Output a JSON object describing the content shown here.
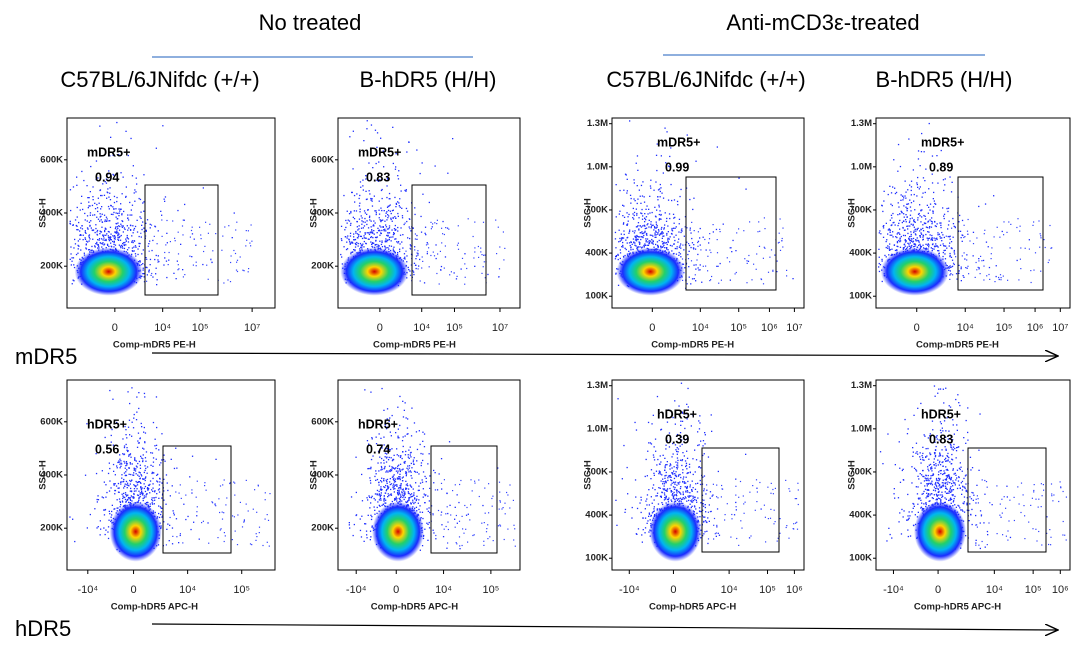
{
  "groups": [
    {
      "title": "No treated"
    },
    {
      "title": "Anti-mCD3ε-treated"
    }
  ],
  "columns": [
    "C57BL/6JNifdc (+/+)",
    "B-hDR5 (H/H)",
    "C57BL/6JNifdc (+/+)",
    "B-hDR5 (H/H)"
  ],
  "rows": [
    {
      "marker": "mDR5",
      "plots": [
        {
          "gate": "mDR5+",
          "value": "0.94",
          "x_label": "Comp-mDR5 PE-H",
          "y_label": "SSC-H",
          "yticks": [
            "600K",
            "400K",
            "200K"
          ],
          "xticks": [
            "0",
            "10⁴",
            "10⁵",
            "10⁷"
          ]
        },
        {
          "gate": "mDR5+",
          "value": "0.83",
          "x_label": "Comp-mDR5 PE-H",
          "y_label": "SSC-H",
          "yticks": [
            "600K",
            "400K",
            "200K"
          ],
          "xticks": [
            "0",
            "10⁴",
            "10⁵",
            "10⁷"
          ]
        },
        {
          "gate": "mDR5+",
          "value": "0.99",
          "x_label": "Comp-mDR5 PE-H",
          "y_label": "SSC-H",
          "yticks": [
            "1.3M",
            "1.0M",
            "700K",
            "400K",
            "100K"
          ],
          "xticks": [
            "0",
            "10⁴",
            "10⁵",
            "10⁶",
            "10⁷"
          ]
        },
        {
          "gate": "mDR5+",
          "value": "0.89",
          "x_label": "Comp-mDR5 PE-H",
          "y_label": "SSC-H",
          "yticks": [
            "1.3M",
            "1.0M",
            "700K",
            "400K",
            "100K"
          ],
          "xticks": [
            "0",
            "10⁴",
            "10⁵",
            "10⁶",
            "10⁷"
          ]
        }
      ]
    },
    {
      "marker": "hDR5",
      "plots": [
        {
          "gate": "hDR5+",
          "value": "0.56",
          "x_label": "Comp-hDR5 APC-H",
          "y_label": "SSC-H",
          "yticks": [
            "600K",
            "400K",
            "200K"
          ],
          "xticks": [
            "-10⁴",
            "0",
            "10⁴",
            "10⁵"
          ]
        },
        {
          "gate": "hDR5+",
          "value": "0.74",
          "x_label": "Comp-hDR5 APC-H",
          "y_label": "SSC-H",
          "yticks": [
            "600K",
            "400K",
            "200K"
          ],
          "xticks": [
            "-10⁴",
            "0",
            "10⁴",
            "10⁵"
          ]
        },
        {
          "gate": "hDR5+",
          "value": "0.39",
          "x_label": "Comp-hDR5 APC-H",
          "y_label": "SSC-H",
          "yticks": [
            "1.3M",
            "1.0M",
            "700K",
            "400K",
            "100K"
          ],
          "xticks": [
            "-10⁴",
            "0",
            "10⁴",
            "10⁵",
            "10⁶"
          ]
        },
        {
          "gate": "hDR5+",
          "value": "0.83",
          "x_label": "Comp-hDR5 APC-H",
          "y_label": "SSC-H",
          "yticks": [
            "1.3M",
            "1.0M",
            "700K",
            "400K",
            "100K"
          ],
          "xticks": [
            "-10⁴",
            "0",
            "10⁴",
            "10⁵",
            "10⁶"
          ]
        }
      ]
    }
  ]
}
